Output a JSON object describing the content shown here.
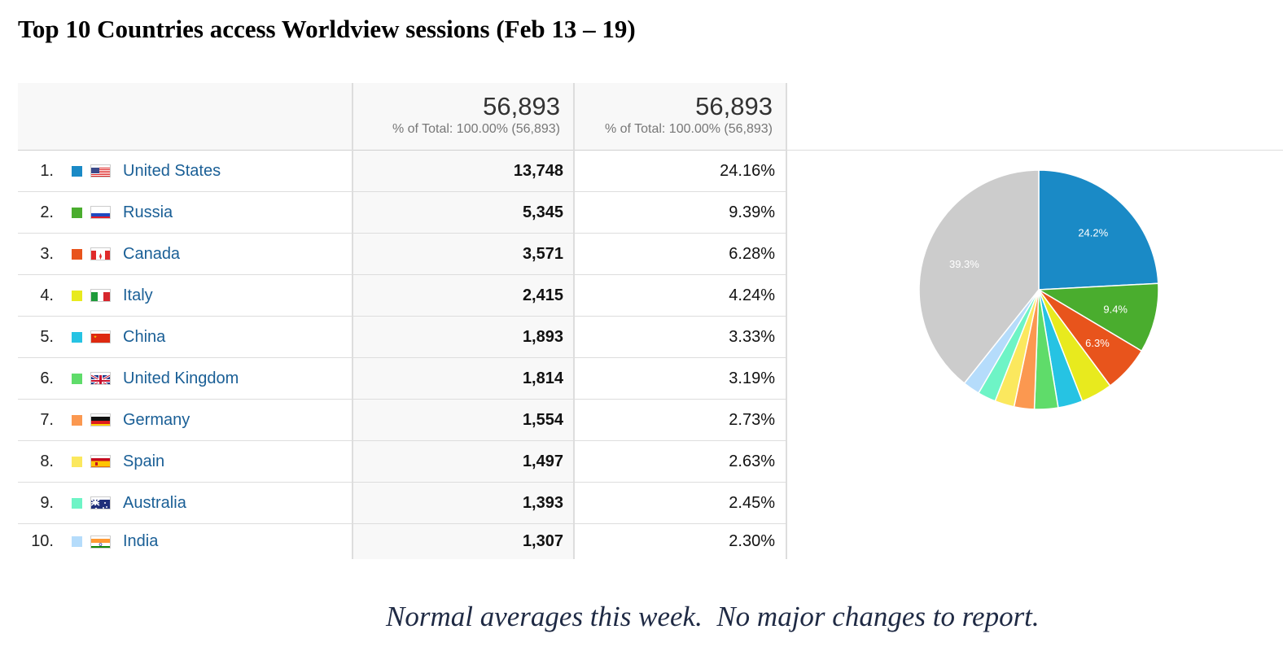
{
  "title": "Top 10 Countries access Worldview sessions (Feb 13 – 19)",
  "table": {
    "header": {
      "sessions_total": "56,893",
      "sessions_sub": "% of Total: 100.00% (56,893)",
      "percent_total": "56,893",
      "percent_sub": "% of Total: 100.00% (56,893)"
    },
    "rows": [
      {
        "rank": "1.",
        "country": "United States",
        "sessions": "13,748",
        "percent": "24.16%",
        "color": "#1a8ac6",
        "flag": "us-flag-icon"
      },
      {
        "rank": "2.",
        "country": "Russia",
        "sessions": "5,345",
        "percent": "9.39%",
        "color": "#4aad2e",
        "flag": "russia-flag-icon"
      },
      {
        "rank": "3.",
        "country": "Canada",
        "sessions": "3,571",
        "percent": "6.28%",
        "color": "#e8541c",
        "flag": "canada-flag-icon"
      },
      {
        "rank": "4.",
        "country": "Italy",
        "sessions": "2,415",
        "percent": "4.24%",
        "color": "#e8ea1e",
        "flag": "italy-flag-icon"
      },
      {
        "rank": "5.",
        "country": "China",
        "sessions": "1,893",
        "percent": "3.33%",
        "color": "#26c3e3",
        "flag": "china-flag-icon"
      },
      {
        "rank": "6.",
        "country": "United Kingdom",
        "sessions": "1,814",
        "percent": "3.19%",
        "color": "#5fdc6a",
        "flag": "uk-flag-icon"
      },
      {
        "rank": "7.",
        "country": "Germany",
        "sessions": "1,554",
        "percent": "2.73%",
        "color": "#fb9850",
        "flag": "germany-flag-icon"
      },
      {
        "rank": "8.",
        "country": "Spain",
        "sessions": "1,497",
        "percent": "2.63%",
        "color": "#fbe85e",
        "flag": "spain-flag-icon"
      },
      {
        "rank": "9.",
        "country": "Australia",
        "sessions": "1,393",
        "percent": "2.45%",
        "color": "#6ef4c6",
        "flag": "australia-flag-icon"
      },
      {
        "rank": "10.",
        "country": "India",
        "sessions": "1,307",
        "percent": "2.30%",
        "color": "#b5dcfb",
        "flag": "india-flag-icon"
      }
    ]
  },
  "chart_data": {
    "type": "pie",
    "slices": [
      {
        "label": "United States",
        "value": 24.16,
        "color": "#1a8ac6",
        "display": "24.2%"
      },
      {
        "label": "Russia",
        "value": 9.39,
        "color": "#4aad2e",
        "display": "9.4%"
      },
      {
        "label": "Canada",
        "value": 6.28,
        "color": "#e8541c",
        "display": "6.3%"
      },
      {
        "label": "Italy",
        "value": 4.24,
        "color": "#e8ea1e",
        "display": ""
      },
      {
        "label": "China",
        "value": 3.33,
        "color": "#26c3e3",
        "display": ""
      },
      {
        "label": "United Kingdom",
        "value": 3.19,
        "color": "#5fdc6a",
        "display": ""
      },
      {
        "label": "Germany",
        "value": 2.73,
        "color": "#fb9850",
        "display": ""
      },
      {
        "label": "Spain",
        "value": 2.63,
        "color": "#fbe85e",
        "display": ""
      },
      {
        "label": "Australia",
        "value": 2.45,
        "color": "#6ef4c6",
        "display": ""
      },
      {
        "label": "India",
        "value": 2.3,
        "color": "#b5dcfb",
        "display": ""
      },
      {
        "label": "Other",
        "value": 39.3,
        "color": "#cccccc",
        "display": "39.3%"
      }
    ]
  },
  "footer": "Normal averages this week.  No major changes to report."
}
